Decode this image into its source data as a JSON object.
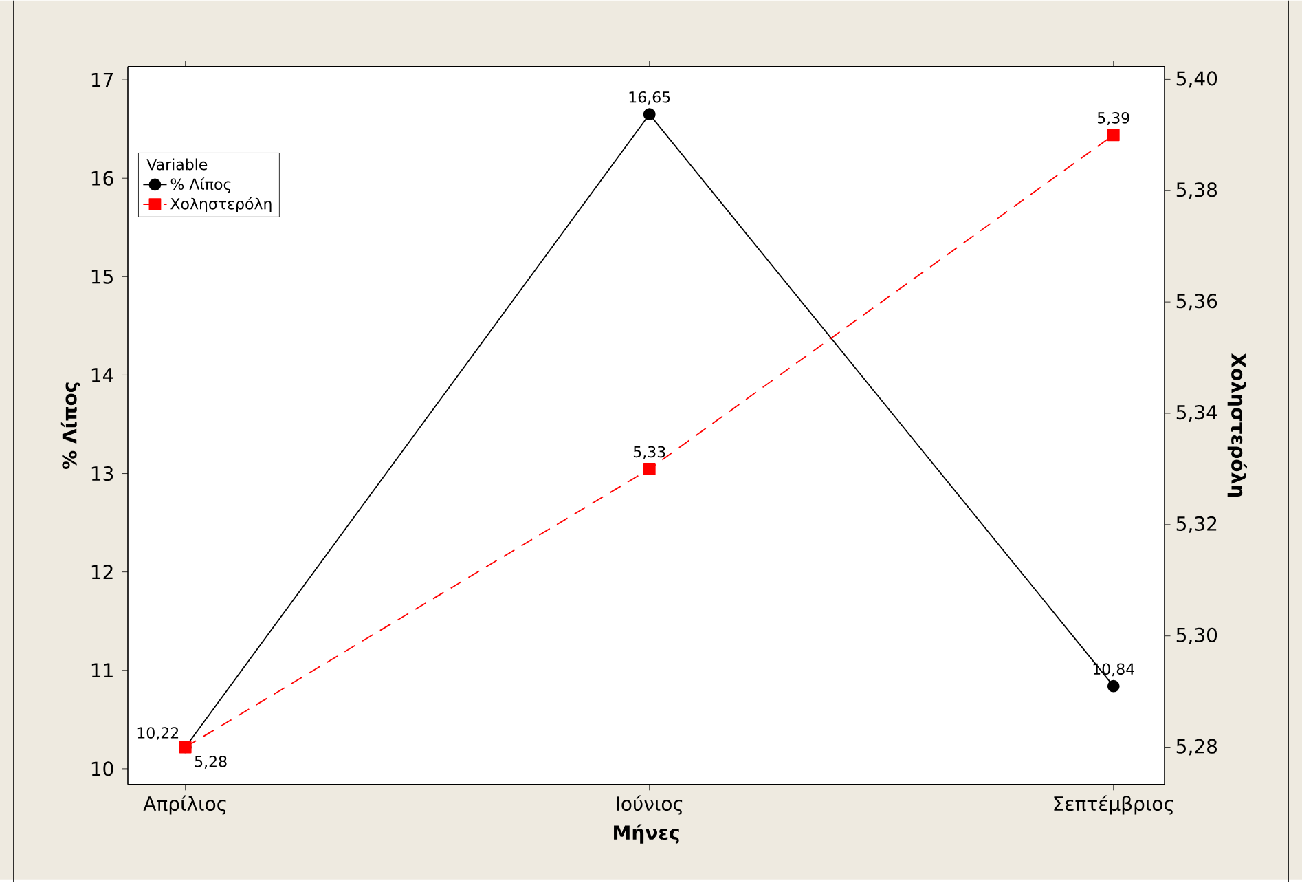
{
  "chart_data": {
    "type": "line",
    "xlabel": "Μήνες",
    "ylabel": "% Λίπος",
    "y2label": "Χοληστερόλη",
    "legend_title": "Variable",
    "legend": "top left",
    "categories": [
      "Απρίλιος",
      "Ιούνιος",
      "Σεπτέμβριος"
    ],
    "series": [
      {
        "name": "% Λίπος",
        "color": "#000000",
        "marker": "circle",
        "line_style": "solid",
        "values": [
          10.22,
          16.65,
          10.84
        ],
        "value_labels": [
          "10,22",
          "16,65",
          "10,84"
        ]
      },
      {
        "name": "Χοληστερόλη",
        "color": "#ff0000",
        "marker": "square",
        "line_style": "dashed",
        "axis": "y2",
        "values": [
          5.28,
          5.33,
          5.39
        ],
        "value_labels": [
          "5,28",
          "5,33",
          "5,39"
        ]
      }
    ],
    "ylim": [
      9.84,
      17.135
    ],
    "yticks": [
      10,
      11,
      12,
      13,
      14,
      15,
      16,
      17
    ],
    "y2lim": [
      5.2733,
      5.4023
    ],
    "y2ticks": [
      {
        "value": 5.28,
        "label": "5,28"
      },
      {
        "value": 5.3,
        "label": "5,30"
      },
      {
        "value": 5.32,
        "label": "5,32"
      },
      {
        "value": 5.34,
        "label": "5,34"
      },
      {
        "value": 5.36,
        "label": "5,36"
      },
      {
        "value": 5.38,
        "label": "5,38"
      },
      {
        "value": 5.4,
        "label": "5,40"
      }
    ]
  }
}
